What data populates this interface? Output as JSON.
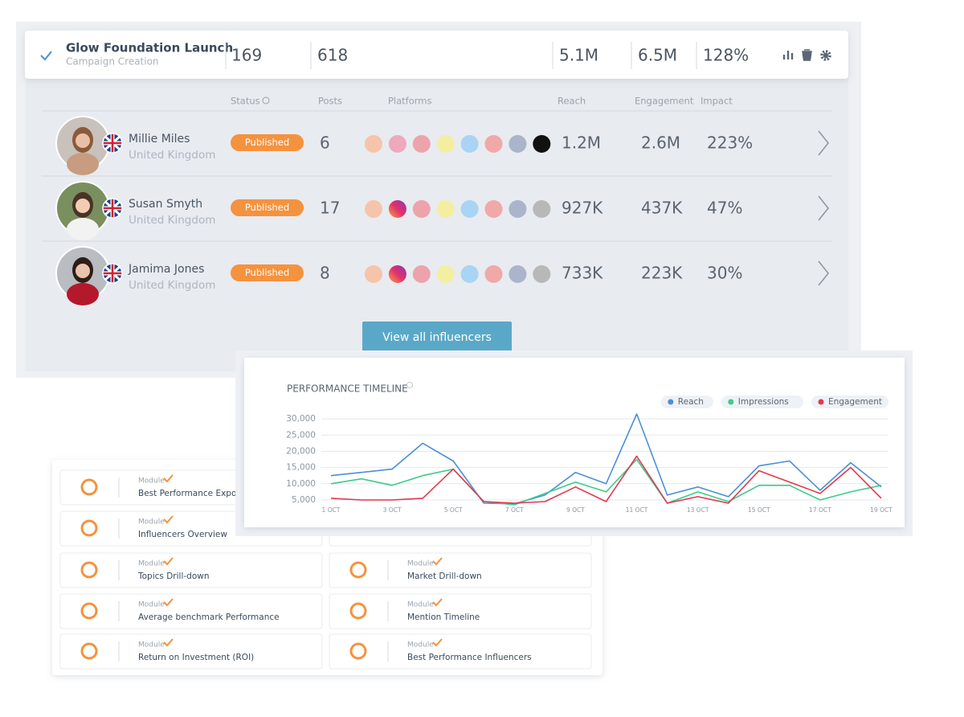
{
  "campaign": {
    "name": "Glow Foundation Launch",
    "subtitle": "Campaign Creation",
    "stats": [
      169,
      618,
      "5.1M",
      "6.5M",
      "128%"
    ]
  },
  "columns": [
    "Status",
    "Posts",
    "Platforms",
    "Reach",
    "Engagement",
    "Impact"
  ],
  "influencers": [
    {
      "name": "Millie Miles",
      "country": "United Kingdom",
      "status": "Published",
      "posts": 6,
      "reach": "1.2M",
      "engagement": "2.6M",
      "impact": "223%"
    },
    {
      "name": "Susan Smyth",
      "country": "United Kingdom",
      "status": "Published",
      "posts": 17,
      "reach": "927K",
      "engagement": "437K",
      "impact": "47%"
    },
    {
      "name": "Jamima Jones",
      "country": "United Kingdom",
      "status": "Published",
      "posts": 8,
      "reach": "733K",
      "engagement": "223K",
      "impact": "30%"
    }
  ],
  "button": "View all influencers",
  "chart_data": {
    "type": "line",
    "title": "PERFORMANCE TIMELINE",
    "categories": [
      "1 OCT",
      null,
      "3 OCT",
      null,
      "5 OCT",
      null,
      "7 OCT",
      null,
      "9 OCT",
      null,
      "11 OCT",
      null,
      "13 OCT",
      null,
      "15 OCT",
      null,
      "17 OCT",
      null,
      "19 OCT"
    ],
    "series": [
      {
        "name": "Reach",
        "color": "#4a90d9",
        "values": [
          12500,
          13500,
          14500,
          22500,
          17000,
          4000,
          3800,
          6500,
          13500,
          10000,
          31500,
          6500,
          9000,
          6000,
          15500,
          17000,
          8000,
          16500,
          9000
        ]
      },
      {
        "name": "Impressions",
        "color": "#3ccb8c",
        "values": [
          10000,
          11500,
          9500,
          12500,
          14500,
          4500,
          3500,
          7000,
          10500,
          7500,
          17500,
          4000,
          7500,
          4500,
          9500,
          9500,
          5000,
          7500,
          9500
        ]
      },
      {
        "name": "Engagement",
        "color": "#e2384f",
        "values": [
          5500,
          5000,
          5000,
          5500,
          14500,
          4500,
          4000,
          4500,
          9000,
          4500,
          18500,
          4000,
          6000,
          4000,
          14000,
          10500,
          7000,
          15000,
          5500
        ]
      }
    ],
    "ylim": [
      4000,
      32500
    ],
    "yticks": [
      {
        "value": 5000,
        "label": "5,000"
      },
      {
        "value": 10000,
        "label": "10,000"
      },
      {
        "value": 15000,
        "label": "15,000"
      },
      {
        "value": 20000,
        "label": "20,000"
      },
      {
        "value": 25000,
        "label": "25,000"
      },
      {
        "value": 30000,
        "label": "30,000"
      }
    ],
    "grid": true,
    "legend": "top-right"
  },
  "modules": {
    "label": "Module",
    "left": [
      "Best Performance Exposu",
      "Influencers Overview",
      "Topics Drill-down",
      "Average benchmark Performance",
      "Return on Investment (ROI)"
    ],
    "right": [
      "Market Drill-down",
      "Mention Timeline",
      "Best Performance Influencers"
    ]
  }
}
